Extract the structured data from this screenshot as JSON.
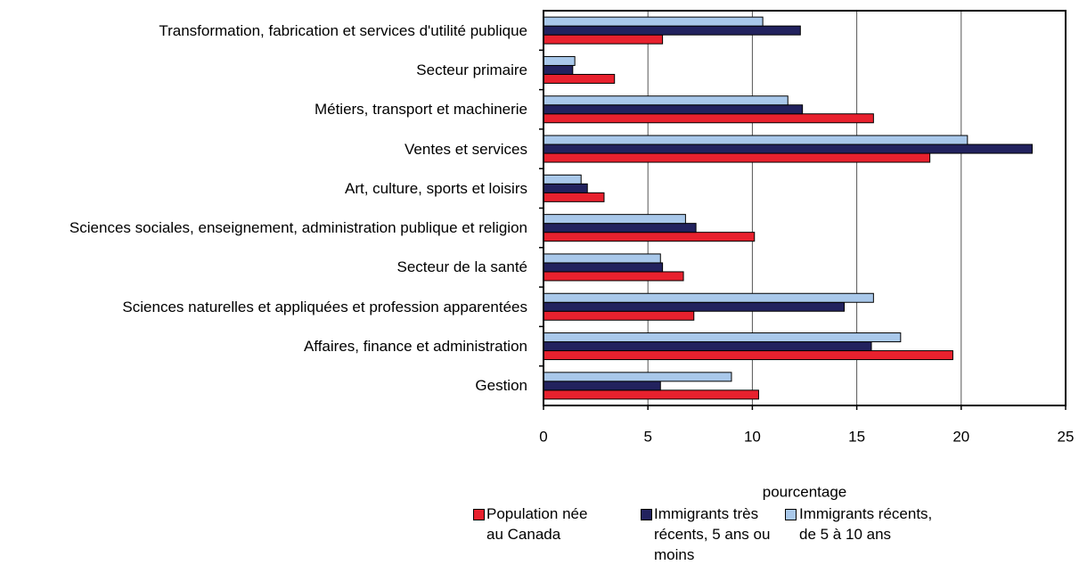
{
  "chart_data": {
    "type": "bar",
    "orientation": "horizontal",
    "xlabel": "pourcentage",
    "categories": [
      "Transformation, fabrication et services d'utilité publique",
      "Secteur primaire",
      "Métiers, transport et machinerie",
      "Ventes et services",
      "Art, culture, sports et loisirs",
      "Sciences sociales, enseignement, administration publique et religion",
      "Secteur de la santé",
      "Sciences naturelles et appliquées et profession apparentées",
      "Affaires, finance et administration",
      "Gestion"
    ],
    "series": [
      {
        "name": "Population née au Canada",
        "color": "#e8212e",
        "values": [
          5.7,
          3.4,
          15.8,
          18.5,
          2.9,
          10.1,
          6.7,
          7.2,
          19.6,
          10.3
        ]
      },
      {
        "name": "Immigrants très récents, 5 ans ou moins",
        "color": "#22225e",
        "values": [
          12.3,
          1.4,
          12.4,
          23.4,
          2.1,
          7.3,
          5.7,
          14.4,
          15.7,
          5.6
        ]
      },
      {
        "name": "Immigrants récents, de 5 à 10 ans",
        "color": "#a9c8ea",
        "values": [
          10.5,
          1.5,
          11.7,
          20.3,
          1.8,
          6.8,
          5.6,
          15.8,
          17.1,
          9.0
        ]
      }
    ],
    "xlim": [
      0,
      25
    ],
    "xticks": [
      0,
      5,
      10,
      15,
      20,
      25
    ],
    "grid": true
  }
}
